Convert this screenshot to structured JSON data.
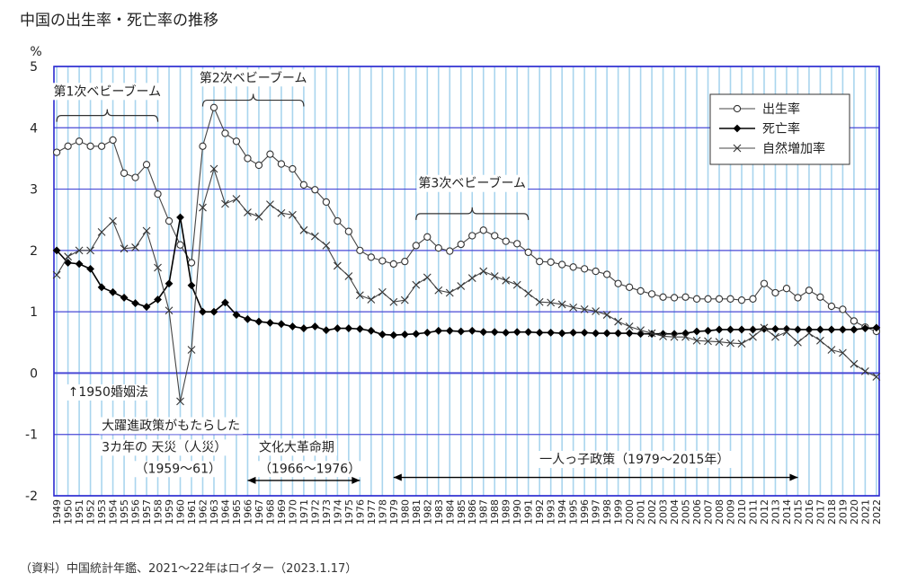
{
  "chart_data": {
    "type": "line",
    "title": "中国の出生率・死亡率の推移",
    "ylabel": "%",
    "ylim": [
      -2,
      5
    ],
    "yticks": [
      "5",
      "4",
      "3",
      "2",
      "1",
      "0",
      "-1",
      "-2"
    ],
    "years": [
      1949,
      1950,
      1951,
      1952,
      1953,
      1954,
      1955,
      1956,
      1957,
      1958,
      1959,
      1960,
      1961,
      1962,
      1963,
      1964,
      1965,
      1966,
      1967,
      1968,
      1969,
      1970,
      1971,
      1972,
      1973,
      1974,
      1975,
      1976,
      1977,
      1978,
      1979,
      1980,
      1981,
      1982,
      1983,
      1984,
      1985,
      1986,
      1987,
      1988,
      1989,
      1990,
      1991,
      1992,
      1993,
      1994,
      1995,
      1996,
      1997,
      1998,
      1999,
      2000,
      2001,
      2002,
      2003,
      2004,
      2005,
      2006,
      2007,
      2008,
      2009,
      2010,
      2011,
      2012,
      2013,
      2014,
      2015,
      2016,
      2017,
      2018,
      2019,
      2020,
      2021,
      2022
    ],
    "series": [
      {
        "name": "出生率",
        "marker": "circle",
        "values": [
          3.6,
          3.7,
          3.78,
          3.7,
          3.7,
          3.8,
          3.26,
          3.19,
          3.4,
          2.92,
          2.48,
          2.09,
          1.8,
          3.7,
          4.33,
          3.91,
          3.78,
          3.5,
          3.39,
          3.57,
          3.41,
          3.33,
          3.07,
          2.99,
          2.79,
          2.48,
          2.31,
          2.0,
          1.89,
          1.83,
          1.78,
          1.82,
          2.08,
          2.22,
          2.04,
          1.99,
          2.1,
          2.24,
          2.33,
          2.24,
          2.15,
          2.11,
          1.97,
          1.82,
          1.81,
          1.77,
          1.73,
          1.7,
          1.66,
          1.61,
          1.46,
          1.4,
          1.34,
          1.29,
          1.24,
          1.23,
          1.24,
          1.21,
          1.21,
          1.21,
          1.21,
          1.19,
          1.21,
          1.46,
          1.31,
          1.38,
          1.23,
          1.35,
          1.24,
          1.09,
          1.04,
          0.85,
          0.75,
          0.68
        ]
      },
      {
        "name": "死亡率",
        "marker": "diamond",
        "values": [
          2.0,
          1.8,
          1.78,
          1.7,
          1.4,
          1.32,
          1.23,
          1.14,
          1.08,
          1.2,
          1.46,
          2.54,
          1.43,
          1.0,
          1.0,
          1.15,
          0.95,
          0.88,
          0.84,
          0.82,
          0.8,
          0.76,
          0.73,
          0.76,
          0.7,
          0.73,
          0.73,
          0.72,
          0.69,
          0.63,
          0.62,
          0.63,
          0.64,
          0.66,
          0.69,
          0.69,
          0.68,
          0.69,
          0.67,
          0.67,
          0.66,
          0.67,
          0.67,
          0.66,
          0.66,
          0.65,
          0.66,
          0.66,
          0.65,
          0.65,
          0.65,
          0.65,
          0.64,
          0.64,
          0.64,
          0.64,
          0.65,
          0.68,
          0.69,
          0.71,
          0.71,
          0.71,
          0.71,
          0.72,
          0.72,
          0.72,
          0.71,
          0.71,
          0.71,
          0.71,
          0.71,
          0.71,
          0.73,
          0.74
        ]
      },
      {
        "name": "自然増加率",
        "marker": "x",
        "values": [
          1.6,
          1.9,
          2.0,
          2.0,
          2.3,
          2.48,
          2.03,
          2.05,
          2.32,
          1.72,
          1.02,
          -0.46,
          0.38,
          2.7,
          3.33,
          2.76,
          2.84,
          2.62,
          2.55,
          2.75,
          2.61,
          2.58,
          2.33,
          2.23,
          2.08,
          1.75,
          1.58,
          1.27,
          1.2,
          1.32,
          1.16,
          1.19,
          1.44,
          1.56,
          1.35,
          1.31,
          1.42,
          1.55,
          1.66,
          1.58,
          1.51,
          1.44,
          1.3,
          1.16,
          1.15,
          1.12,
          1.07,
          1.04,
          1.01,
          0.95,
          0.84,
          0.76,
          0.7,
          0.65,
          0.6,
          0.59,
          0.59,
          0.53,
          0.52,
          0.51,
          0.49,
          0.48,
          0.59,
          0.74,
          0.59,
          0.67,
          0.5,
          0.65,
          0.53,
          0.38,
          0.33,
          0.15,
          0.03,
          -0.06
        ]
      }
    ],
    "legend_position": "top-right",
    "annotations": [
      {
        "id": "boom1",
        "text": "第1次ベビーブーム",
        "from": 1949,
        "to": 1958,
        "level": 4.2,
        "label_level": 4.6
      },
      {
        "id": "boom2",
        "text": "第2次ベビーブーム",
        "from": 1962,
        "to": 1971,
        "level": 4.45,
        "label_level": 4.82
      },
      {
        "id": "boom3",
        "text": "第3次ベビーブーム",
        "from": 1981,
        "to": 1991,
        "level": 2.6,
        "label_level": 3.1
      },
      {
        "id": "marriage",
        "text": "↑1950婚姻法",
        "at": 1950,
        "level": -0.3
      },
      {
        "id": "leap1",
        "text": "大躍進政策がもたらした",
        "at": 1953,
        "level": -0.85
      },
      {
        "id": "leap2",
        "text": "3カ年の 天災（人災）",
        "at": 1953,
        "level": -1.2
      },
      {
        "id": "leap3",
        "text": "（1959～61）",
        "at": 1956,
        "level": -1.55
      },
      {
        "id": "cult1",
        "text": "文化大革命期",
        "at": 1967,
        "level": -1.2
      },
      {
        "id": "cult2",
        "text": "（1966～1976）",
        "at": 1967,
        "level": -1.55
      },
      {
        "id": "onechild",
        "text": "一人っ子政策（1979～2015年）",
        "at": 1992,
        "level": -1.4
      }
    ],
    "arrows": [
      {
        "id": "cult-arrow",
        "from": 1966,
        "to": 1976,
        "level": -1.75
      },
      {
        "id": "onechild-arrow",
        "from": 1979,
        "to": 2015,
        "level": -1.7
      }
    ]
  },
  "source_note": "（資料）中国統計年鑑、2021～22年はロイター（2023.1.17）"
}
